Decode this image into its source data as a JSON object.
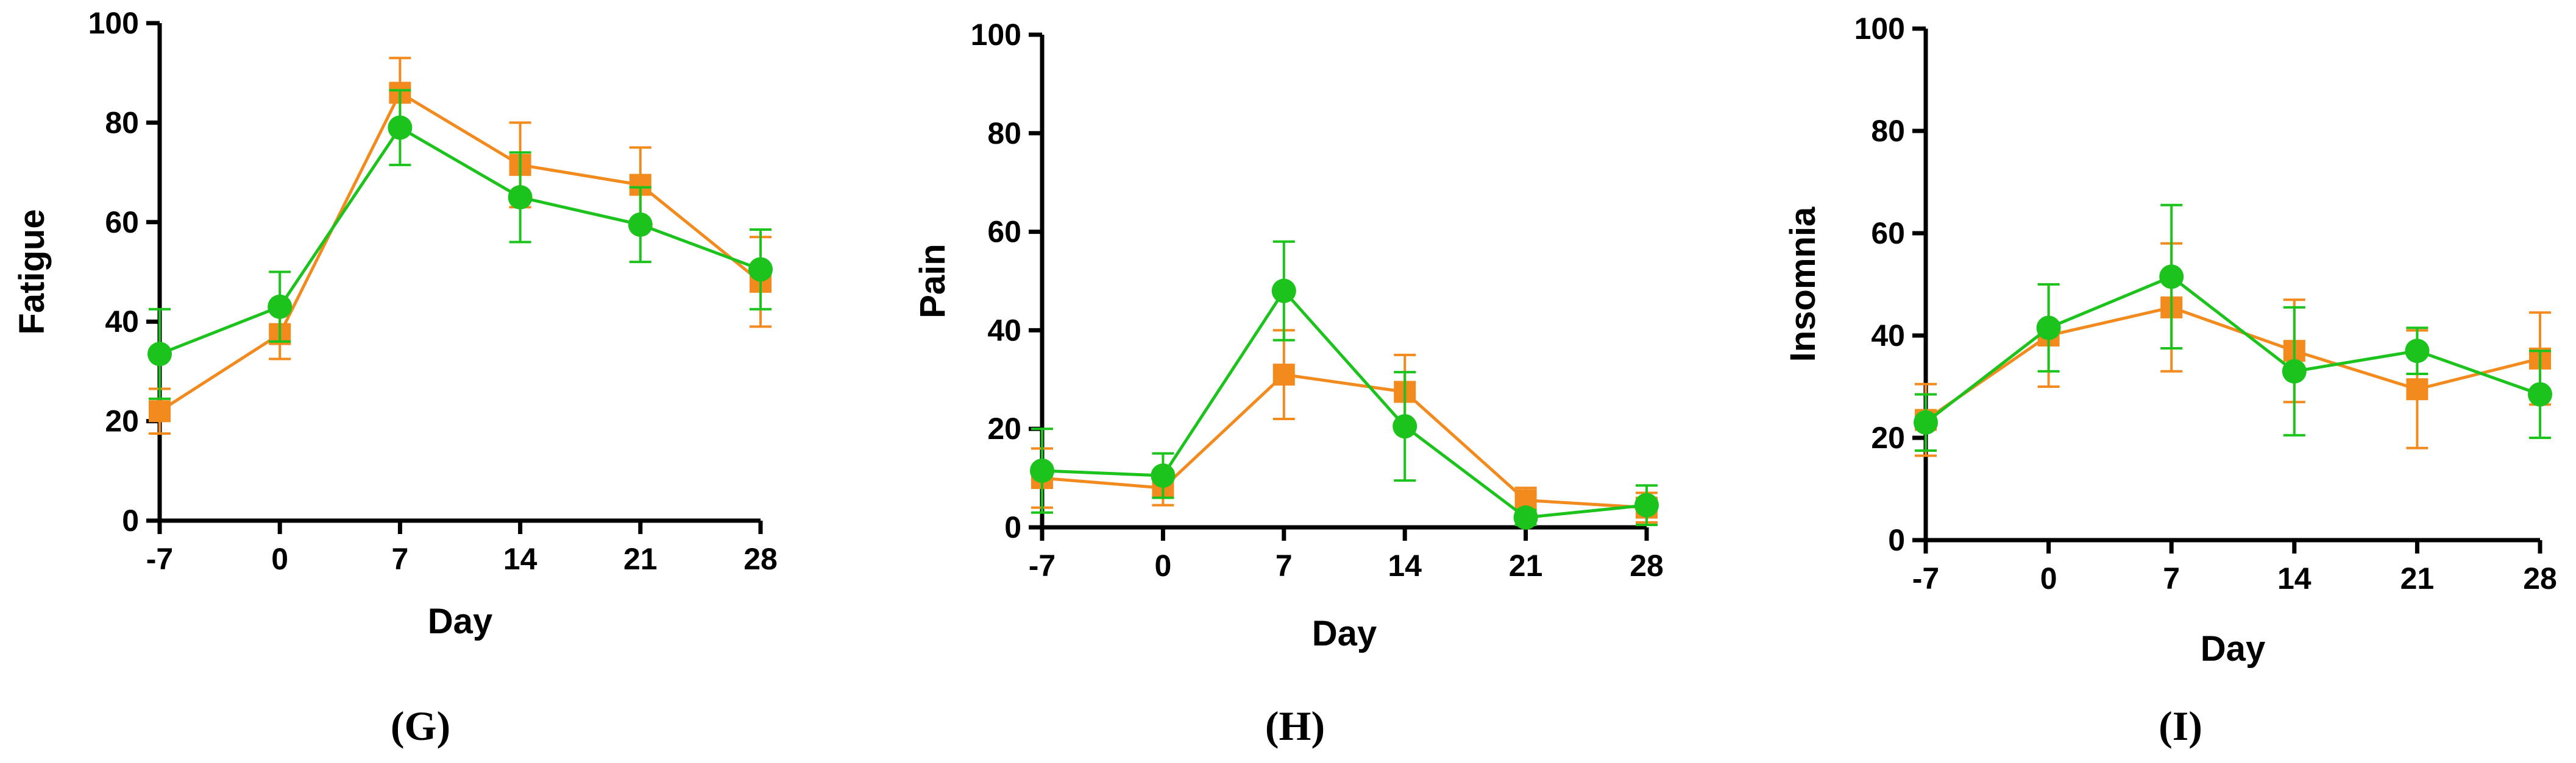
{
  "colors": {
    "orange": "#f28a1e",
    "green": "#1cc31c",
    "axis": "#000000"
  },
  "chart_data": [
    {
      "type": "line",
      "panel_label": "(G)",
      "xlabel": "Day",
      "ylabel": "Fatigue",
      "x": [
        -7,
        0,
        7,
        14,
        21,
        28
      ],
      "xtick_labels": [
        "-7",
        "0",
        "7",
        "14",
        "21",
        "28"
      ],
      "ylim": [
        0,
        100
      ],
      "yticks": [
        0,
        20,
        40,
        60,
        80,
        100
      ],
      "ytick_labels": [
        "0",
        "20",
        "40",
        "60",
        "80",
        "100"
      ],
      "series": [
        {
          "name": "orange",
          "color": "#f28a1e",
          "marker": "square",
          "values": [
            22,
            37.5,
            86,
            71.5,
            67.5,
            48
          ],
          "errors": [
            4.5,
            5,
            7,
            8.5,
            7.5,
            9
          ]
        },
        {
          "name": "green",
          "color": "#1cc31c",
          "marker": "circle",
          "values": [
            33.5,
            43,
            79,
            65,
            59.5,
            50.5
          ],
          "errors": [
            9,
            7,
            7.5,
            9,
            7.5,
            8
          ]
        }
      ]
    },
    {
      "type": "line",
      "panel_label": "(H)",
      "xlabel": "Day",
      "ylabel": "Pain",
      "x": [
        -7,
        0,
        7,
        14,
        21,
        28
      ],
      "xtick_labels": [
        "-7",
        "0",
        "7",
        "14",
        "21",
        "28"
      ],
      "ylim": [
        0,
        100
      ],
      "yticks": [
        0,
        20,
        40,
        60,
        80,
        100
      ],
      "ytick_labels": [
        "0",
        "20",
        "40",
        "60",
        "80",
        "100"
      ],
      "series": [
        {
          "name": "orange",
          "color": "#f28a1e",
          "marker": "square",
          "values": [
            10,
            8,
            31,
            27.5,
            5.5,
            4
          ],
          "errors": [
            6,
            3.5,
            9,
            7.5,
            2.5,
            3
          ]
        },
        {
          "name": "green",
          "color": "#1cc31c",
          "marker": "circle",
          "values": [
            11.5,
            10.5,
            48,
            20.5,
            2,
            4.5
          ],
          "errors": [
            8.5,
            4.5,
            10,
            11,
            1.5,
            4
          ]
        }
      ]
    },
    {
      "type": "line",
      "panel_label": "(I)",
      "xlabel": "Day",
      "ylabel": "Insomnia",
      "x": [
        -7,
        0,
        7,
        14,
        21,
        28
      ],
      "xtick_labels": [
        "-7",
        "0",
        "7",
        "14",
        "21",
        "28"
      ],
      "ylim": [
        0,
        100
      ],
      "yticks": [
        0,
        20,
        40,
        60,
        80,
        100
      ],
      "ytick_labels": [
        "0",
        "20",
        "40",
        "60",
        "80",
        "100"
      ],
      "series": [
        {
          "name": "orange",
          "color": "#f28a1e",
          "marker": "square",
          "values": [
            23.5,
            40,
            45.5,
            37,
            29.5,
            35.5
          ],
          "errors": [
            7,
            10,
            12.5,
            10,
            11.5,
            9
          ]
        },
        {
          "name": "green",
          "color": "#1cc31c",
          "marker": "circle",
          "values": [
            23,
            41.5,
            51.5,
            33,
            37,
            28.5
          ],
          "errors": [
            5.5,
            8.5,
            14,
            12.5,
            4.5,
            8.5
          ]
        }
      ]
    }
  ]
}
